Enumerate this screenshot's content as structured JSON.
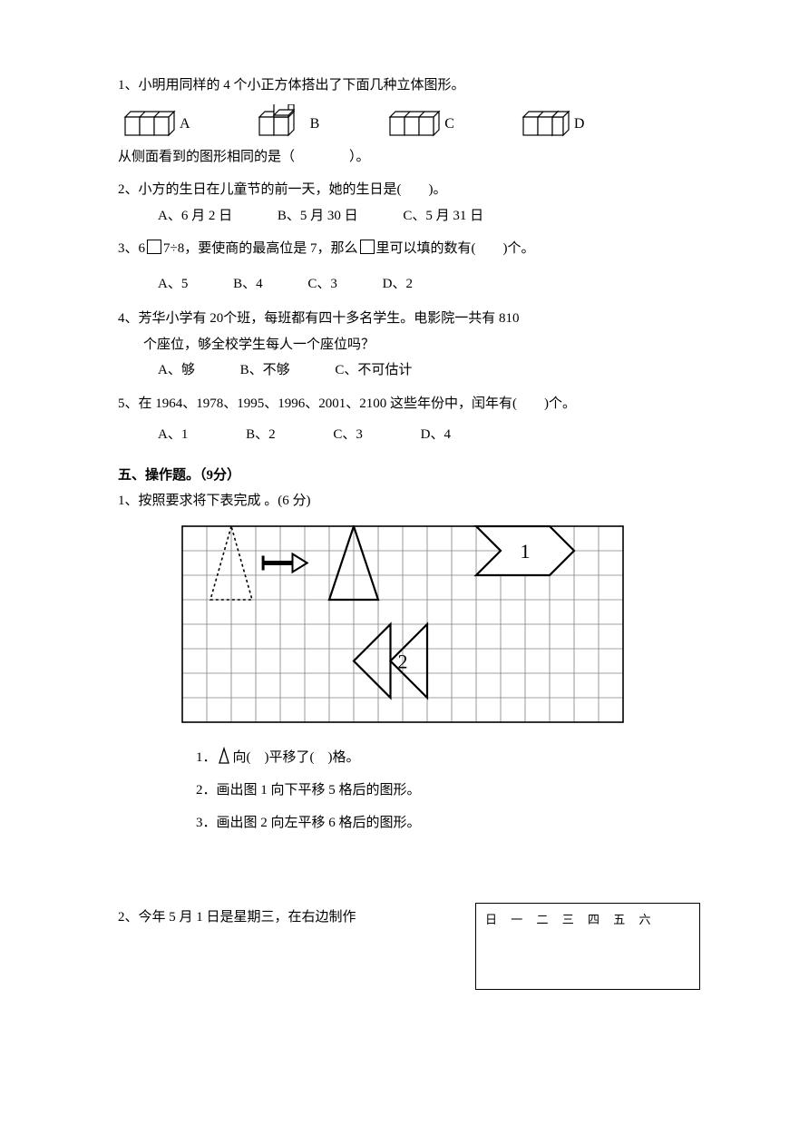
{
  "q1": {
    "text": "1、小明用同样的 4 个小正方体搭出了下面几种立体图形。",
    "labels": {
      "a": "A",
      "b": "B",
      "c": "C",
      "d": "D"
    },
    "followup": "从侧面看到的图形相同的是（    ）。"
  },
  "q2": {
    "text": "2、小方的生日在儿童节的前一天，她的生日是(  )。",
    "a": "A、6 月 2 日",
    "b": "B、5 月 30 日",
    "c": "C、5 月 31 日"
  },
  "q3": {
    "prefix": "3、6",
    "mid": "7÷8，要使商的最高位是 7，那么",
    "suffix": "里可以填的数有(  )个。",
    "a": "A、5",
    "b": "B、4",
    "c": "C、3",
    "d": "D、2"
  },
  "q4": {
    "line1": "4、芳华小学有 20个班，每班都有四十多名学生。电影院一共有 810",
    "line2": "个座位，够全校学生每人一个座位吗？",
    "a": "A、够",
    "b": "B、不够",
    "c": "C、不可估计"
  },
  "q5": {
    "text": "5、在 1964、1978、1995、1996、2001、2100 这些年份中，闰年有(  )个。",
    "a": "A、1",
    "b": "B、2",
    "c": "C、3",
    "d": "D、4"
  },
  "section5": {
    "header": "五、操作题。（9分）",
    "q1": {
      "intro": "1、按照要求将下表完成 。(6 分)",
      "sub1_prefix": "1．",
      "sub1_suffix": "向( )平移了( )格。",
      "sub2": "2．画出图 1 向下平移 5 格后的图形。",
      "sub3": "3．画出图 2 向左平移 6 格后的图形。"
    },
    "q2": {
      "text": "2、今年 5 月 1 日是星期三，在右边制作",
      "calendar_header": "日 一 二 三 四 五 六"
    }
  },
  "grid": {
    "cols": 18,
    "rows": 8,
    "cell": 27,
    "shape1_label": "1",
    "shape2_label": "2",
    "stroke": "#000000",
    "grid_stroke": "#808080"
  }
}
